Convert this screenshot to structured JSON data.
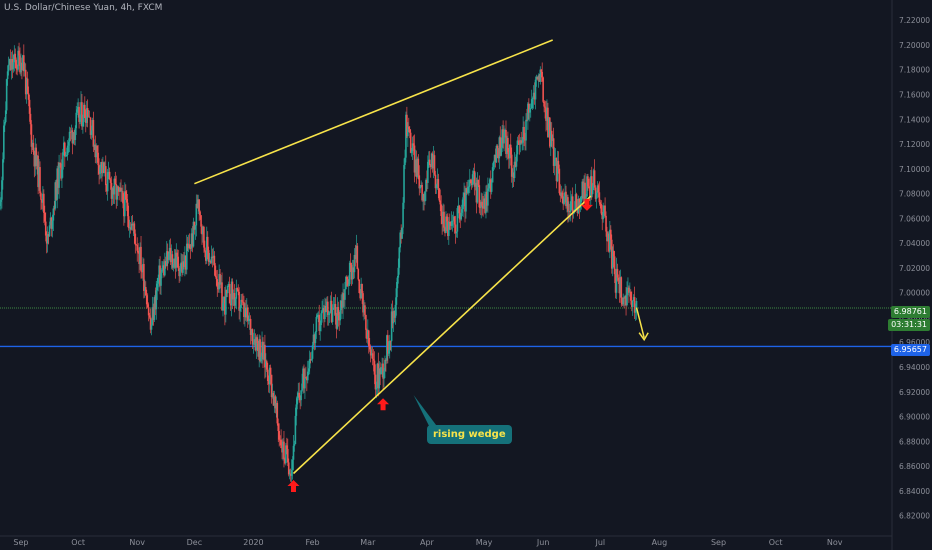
{
  "header": {
    "title": "U.S. Dollar/Chinese Yuan, 4h, FXCM"
  },
  "tags": {
    "last_price": "6.98761",
    "countdown": "03:31:31",
    "blue_line": "6.95657"
  },
  "annotation": {
    "label": "rising wedge"
  },
  "colors": {
    "background": "#131722",
    "bull": "#26a69a",
    "bear": "#ef5350",
    "trend": "#f7e34a",
    "green_line": "#4caf50",
    "blue_line": "#1e63e8",
    "arrow": "#ff1a1a",
    "axis_text": "#8c8f99",
    "callout": "#15717a"
  },
  "chart_data": {
    "type": "candlestick",
    "title": "U.S. Dollar/Chinese Yuan, 4h, FXCM",
    "x_ticks": [
      "Sep",
      "Oct",
      "Nov",
      "Dec",
      "2020",
      "Feb",
      "Mar",
      "Apr",
      "May",
      "Jun",
      "Jul",
      "Aug",
      "Sep",
      "Oct",
      "Nov"
    ],
    "x_start": "2019-08-21",
    "x_end": "2020-11-30",
    "ylim": [
      6.81,
      7.225
    ],
    "y_ticks": [
      "7.22000",
      "7.20000",
      "7.18000",
      "7.16000",
      "7.14000",
      "7.12000",
      "7.10000",
      "7.08000",
      "7.06000",
      "7.04000",
      "7.02000",
      "7.00000",
      "6.98000",
      "6.96000",
      "6.94000",
      "6.92000",
      "6.90000",
      "6.88000",
      "6.86000",
      "6.84000",
      "6.82000"
    ],
    "grid": false,
    "price_path": [
      {
        "date": "2019-08-21",
        "price": 7.07
      },
      {
        "date": "2019-08-25",
        "price": 7.18
      },
      {
        "date": "2019-09-02",
        "price": 7.19
      },
      {
        "date": "2019-09-07",
        "price": 7.12
      },
      {
        "date": "2019-09-12",
        "price": 7.08
      },
      {
        "date": "2019-09-15",
        "price": 7.04
      },
      {
        "date": "2019-09-20",
        "price": 7.09
      },
      {
        "date": "2019-09-25",
        "price": 7.12
      },
      {
        "date": "2019-10-01",
        "price": 7.14
      },
      {
        "date": "2019-10-06",
        "price": 7.15
      },
      {
        "date": "2019-10-11",
        "price": 7.11
      },
      {
        "date": "2019-10-16",
        "price": 7.09
      },
      {
        "date": "2019-10-21",
        "price": 7.08
      },
      {
        "date": "2019-10-26",
        "price": 7.07
      },
      {
        "date": "2019-11-01",
        "price": 7.04
      },
      {
        "date": "2019-11-06",
        "price": 7.0
      },
      {
        "date": "2019-11-08",
        "price": 6.97
      },
      {
        "date": "2019-11-12",
        "price": 7.01
      },
      {
        "date": "2019-11-18",
        "price": 7.03
      },
      {
        "date": "2019-11-25",
        "price": 7.02
      },
      {
        "date": "2019-12-01",
        "price": 7.05
      },
      {
        "date": "2019-12-03",
        "price": 7.08
      },
      {
        "date": "2019-12-06",
        "price": 7.04
      },
      {
        "date": "2019-12-12",
        "price": 7.02
      },
      {
        "date": "2019-12-16",
        "price": 6.99
      },
      {
        "date": "2019-12-20",
        "price": 7.0
      },
      {
        "date": "2019-12-25",
        "price": 6.99
      },
      {
        "date": "2019-12-31",
        "price": 6.97
      },
      {
        "date": "2020-01-06",
        "price": 6.95
      },
      {
        "date": "2020-01-10",
        "price": 6.93
      },
      {
        "date": "2020-01-14",
        "price": 6.89
      },
      {
        "date": "2020-01-17",
        "price": 6.87
      },
      {
        "date": "2020-01-21",
        "price": 6.86
      },
      {
        "date": "2020-01-24",
        "price": 6.91
      },
      {
        "date": "2020-01-29",
        "price": 6.94
      },
      {
        "date": "2020-02-03",
        "price": 6.97
      },
      {
        "date": "2020-02-08",
        "price": 6.99
      },
      {
        "date": "2020-02-14",
        "price": 6.98
      },
      {
        "date": "2020-02-19",
        "price": 7.01
      },
      {
        "date": "2020-02-24",
        "price": 7.03
      },
      {
        "date": "2020-02-27",
        "price": 6.99
      },
      {
        "date": "2020-03-01",
        "price": 6.96
      },
      {
        "date": "2020-03-05",
        "price": 6.93
      },
      {
        "date": "2020-03-09",
        "price": 6.94
      },
      {
        "date": "2020-03-13",
        "price": 6.97
      },
      {
        "date": "2020-03-16",
        "price": 7.0
      },
      {
        "date": "2020-03-19",
        "price": 7.06
      },
      {
        "date": "2020-03-21",
        "price": 7.14
      },
      {
        "date": "2020-03-25",
        "price": 7.11
      },
      {
        "date": "2020-03-30",
        "price": 7.08
      },
      {
        "date": "2020-04-04",
        "price": 7.11
      },
      {
        "date": "2020-04-09",
        "price": 7.06
      },
      {
        "date": "2020-04-14",
        "price": 7.05
      },
      {
        "date": "2020-04-20",
        "price": 7.07
      },
      {
        "date": "2020-04-25",
        "price": 7.09
      },
      {
        "date": "2020-05-01",
        "price": 7.07
      },
      {
        "date": "2020-05-06",
        "price": 7.1
      },
      {
        "date": "2020-05-11",
        "price": 7.13
      },
      {
        "date": "2020-05-16",
        "price": 7.1
      },
      {
        "date": "2020-05-22",
        "price": 7.13
      },
      {
        "date": "2020-05-27",
        "price": 7.16
      },
      {
        "date": "2020-05-30",
        "price": 7.18
      },
      {
        "date": "2020-06-03",
        "price": 7.14
      },
      {
        "date": "2020-06-08",
        "price": 7.1
      },
      {
        "date": "2020-06-13",
        "price": 7.07
      },
      {
        "date": "2020-06-18",
        "price": 7.07
      },
      {
        "date": "2020-06-22",
        "price": 7.08
      },
      {
        "date": "2020-06-27",
        "price": 7.09
      },
      {
        "date": "2020-07-02",
        "price": 7.07
      },
      {
        "date": "2020-07-06",
        "price": 7.04
      },
      {
        "date": "2020-07-09",
        "price": 7.01
      },
      {
        "date": "2020-07-13",
        "price": 7.0
      },
      {
        "date": "2020-07-17",
        "price": 6.99
      },
      {
        "date": "2020-07-20",
        "price": 6.988
      }
    ],
    "last_price": 6.98761,
    "horizontal_lines": [
      {
        "price": 6.98761,
        "color": "green"
      },
      {
        "price": 6.95657,
        "color": "blue"
      }
    ],
    "trend_lines": [
      {
        "from": {
          "date": "2019-12-01",
          "price": 7.088
        },
        "to": {
          "date": "2020-06-06",
          "price": 7.204
        }
      },
      {
        "from": {
          "date": "2020-01-22",
          "price": 6.854
        },
        "to": {
          "date": "2020-06-26",
          "price": 7.078
        }
      }
    ],
    "up_arrows": [
      {
        "date": "2020-01-22",
        "price": 6.852
      },
      {
        "date": "2020-03-09",
        "price": 6.918
      }
    ],
    "down_arrows": [
      {
        "date": "2020-06-24",
        "price": 7.066
      }
    ],
    "projection_arrow": {
      "from": {
        "date": "2020-07-20",
        "price": 6.988
      },
      "to": {
        "date": "2020-07-24",
        "price": 6.962
      }
    },
    "annotations": [
      {
        "text": "rising wedge",
        "pointer_to": {
          "date": "2020-03-25",
          "price": 6.923
        }
      }
    ]
  }
}
